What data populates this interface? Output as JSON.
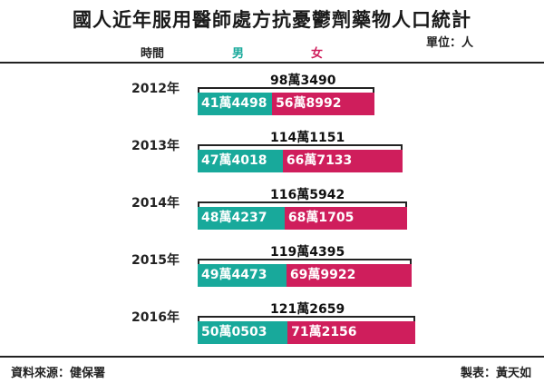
{
  "title": "國人近年服用醫師處方抗憂鬱劑藥物人口統計",
  "unit": "單位：人",
  "headers": {
    "time": "時間",
    "male": "男",
    "female": "女"
  },
  "colors": {
    "male": "#18a99b",
    "female": "#cf1e5c"
  },
  "chart_data": {
    "type": "bar",
    "stacked": true,
    "orientation": "horizontal",
    "categories": [
      "2012年",
      "2013年",
      "2014年",
      "2015年",
      "2016年"
    ],
    "series": [
      {
        "name": "男",
        "values": [
          414498,
          474018,
          484237,
          494473,
          500503
        ],
        "labels": [
          "41萬4498",
          "47萬4018",
          "48萬4237",
          "49萬4473",
          "50萬0503"
        ]
      },
      {
        "name": "女",
        "values": [
          568992,
          667133,
          681705,
          699922,
          712156
        ],
        "labels": [
          "56萬8992",
          "66萬7133",
          "68萬1705",
          "69萬9922",
          "71萬2156"
        ]
      }
    ],
    "totals": [
      983490,
      1141151,
      1165942,
      1194395,
      1212659
    ],
    "total_labels": [
      "98萬3490",
      "114萬1151",
      "116萬5942",
      "119萬4395",
      "121萬2659"
    ]
  },
  "footer": {
    "source": "資料來源：健保署",
    "credit": "製表：黃天如"
  }
}
